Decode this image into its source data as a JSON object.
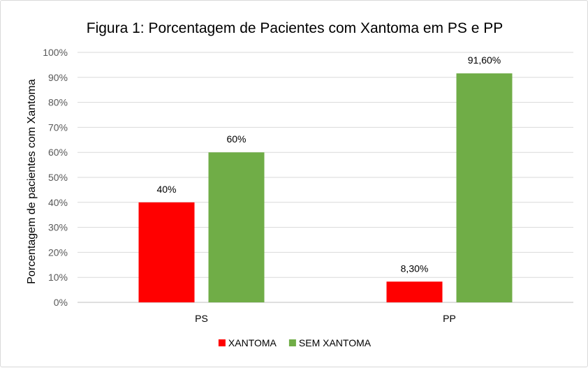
{
  "chart_data": {
    "type": "bar",
    "title": "Figura 1: Porcentagem de Pacientes com Xantoma em PS e PP",
    "xlabel": "",
    "ylabel": "Porcentagem de pacientes com Xantoma",
    "categories": [
      "PS",
      "PP"
    ],
    "ylim": [
      0,
      100
    ],
    "yticks": [
      "0%",
      "10%",
      "20%",
      "30%",
      "40%",
      "50%",
      "60%",
      "70%",
      "80%",
      "90%",
      "100%"
    ],
    "grid": true,
    "legend_position": "bottom",
    "series": [
      {
        "name": "XANTOMA",
        "color": "#ff0000",
        "values": [
          40,
          8.3
        ],
        "labels": [
          "40%",
          "8,30%"
        ]
      },
      {
        "name": "SEM XANTOMA",
        "color": "#70ad47",
        "values": [
          60,
          91.6
        ],
        "labels": [
          "60%",
          "91,60%"
        ]
      }
    ]
  }
}
